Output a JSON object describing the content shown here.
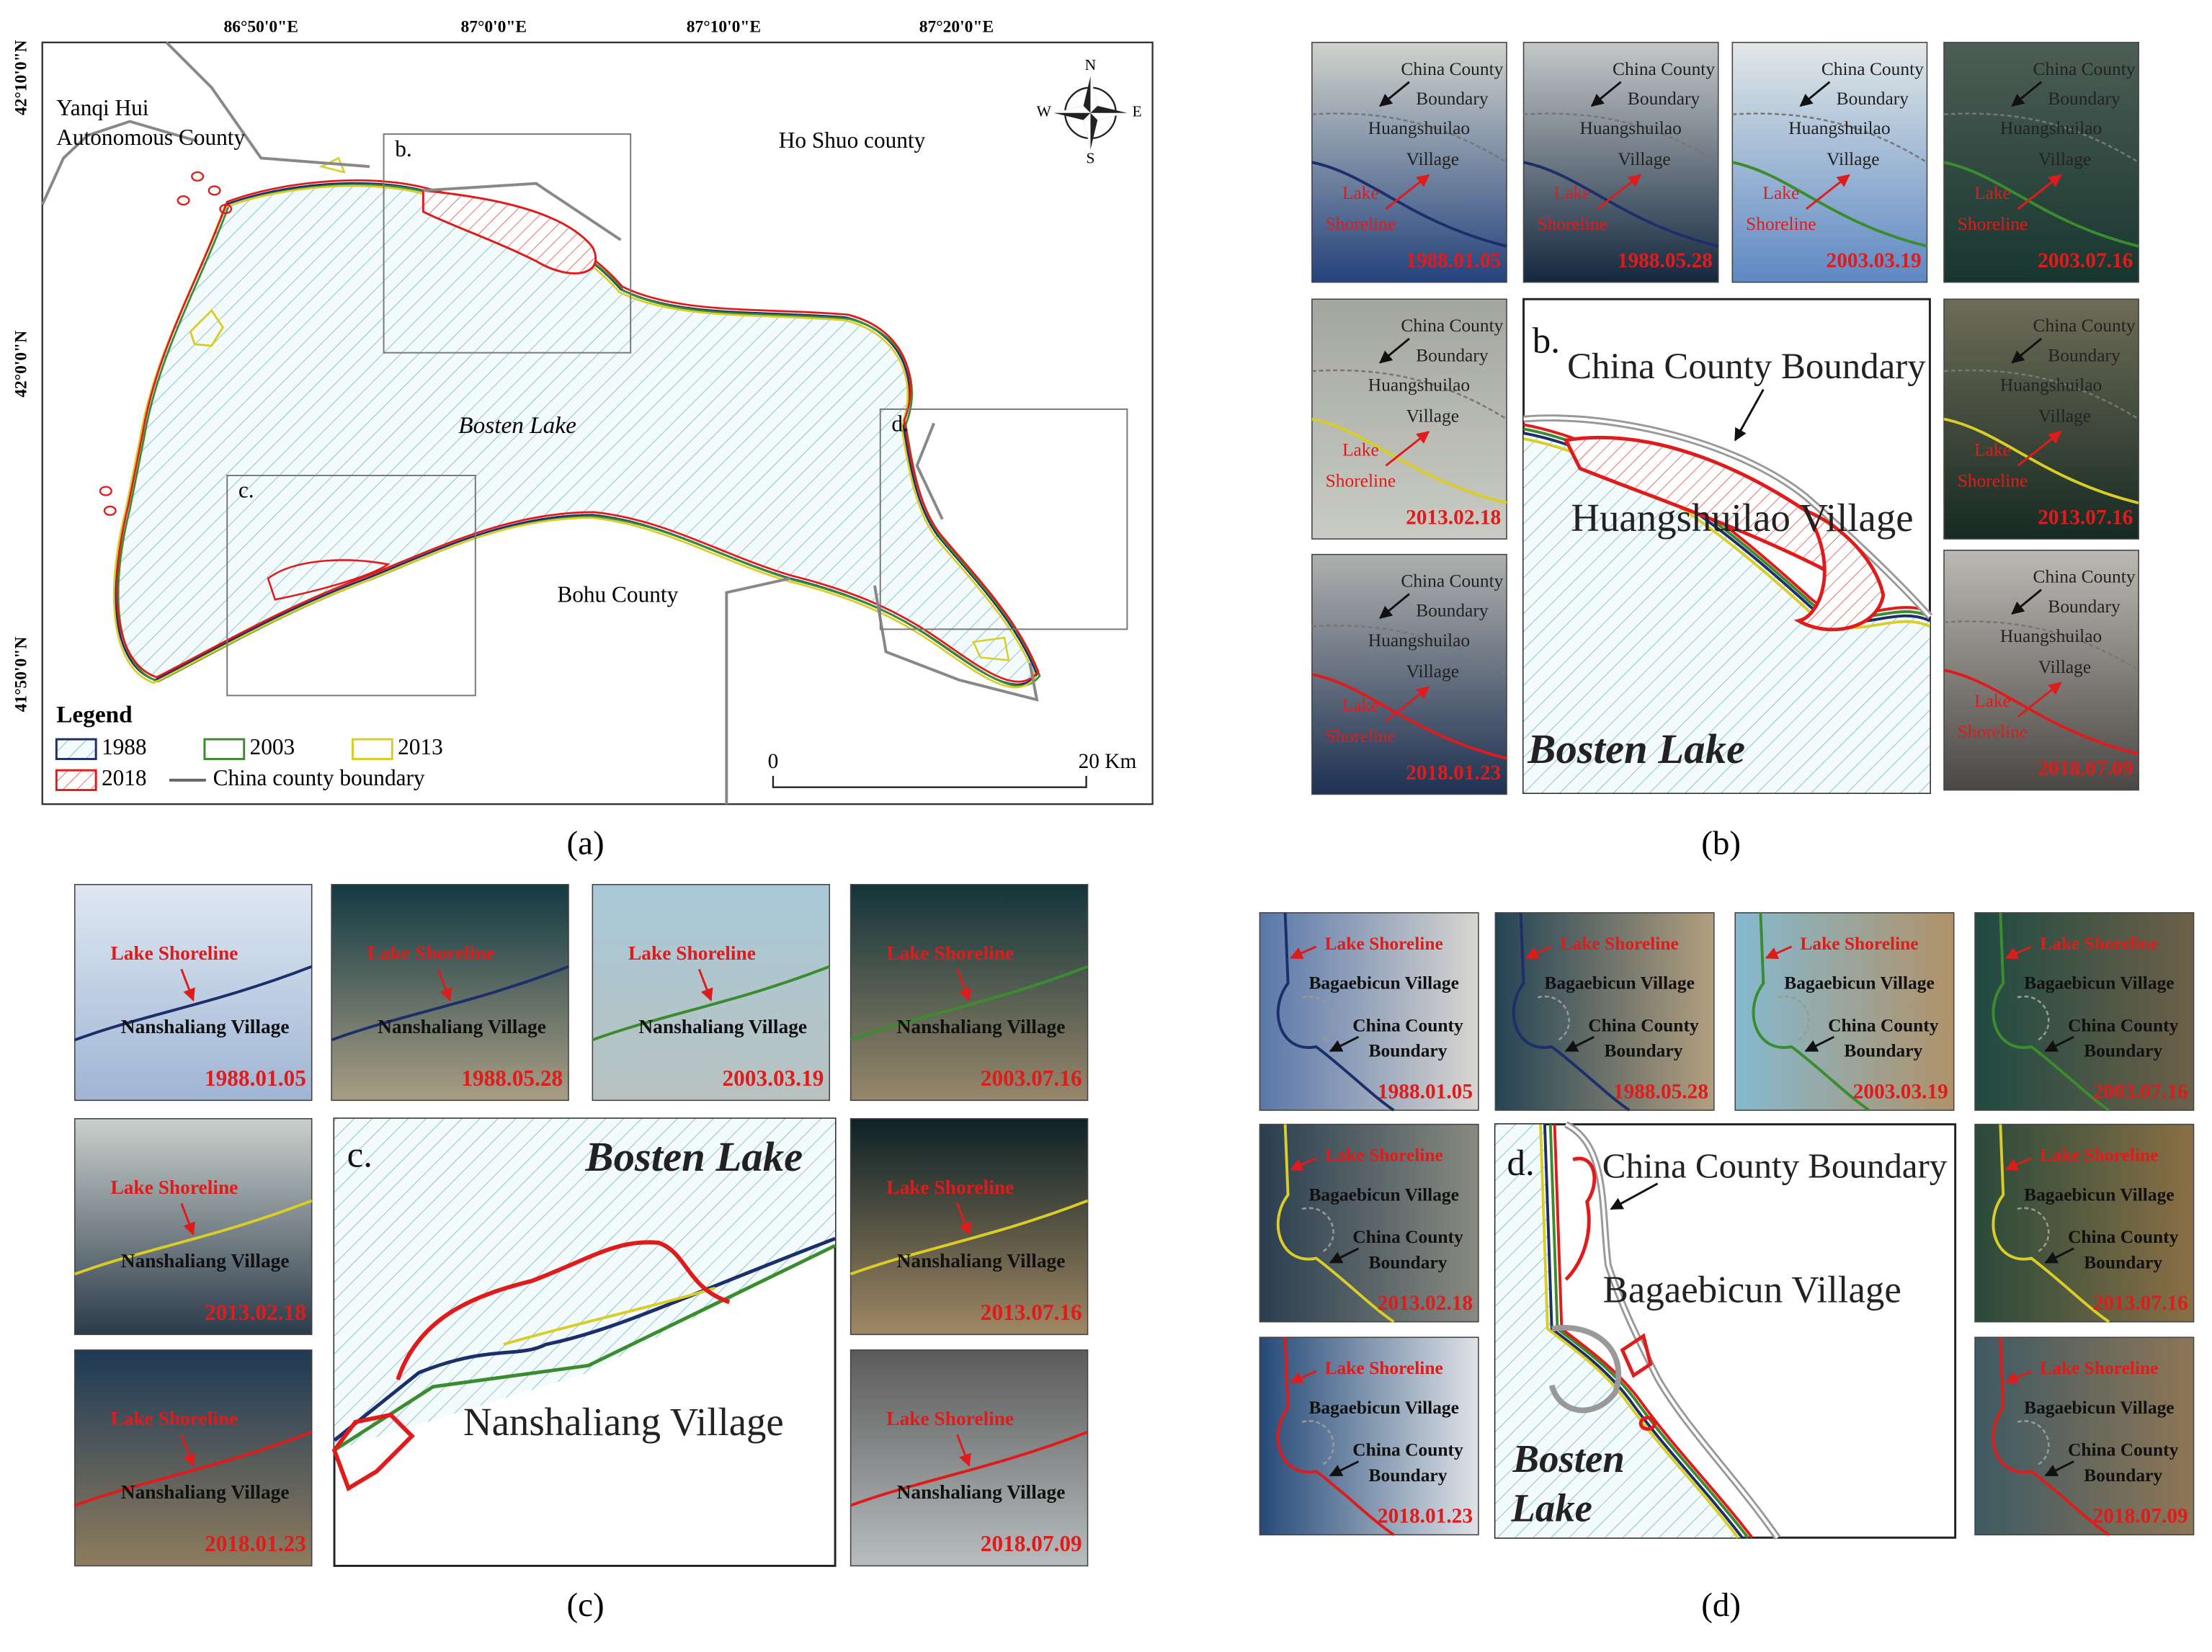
{
  "panel_a": {
    "caption": "(a)",
    "longitude_labels": [
      "86°50'0\"E",
      "87°0'0\"E",
      "87°10'0\"E",
      "87°20'0\"E"
    ],
    "latitude_labels": [
      "42°10'0\"N",
      "42°0'0\"N",
      "41°50'0\"N"
    ],
    "place_labels": {
      "yanqi_line1": "Yanqi Hui",
      "yanqi_line2": "Autonomous County",
      "ho_shuo": "Ho Shuo county",
      "bosten": "Bosten Lake",
      "bohu": "Bohu County"
    },
    "box_labels": [
      "b.",
      "c.",
      "d."
    ],
    "compass": {
      "n": "N",
      "s": "S",
      "w": "W",
      "e": "E"
    },
    "legend": {
      "title": "Legend",
      "entries": [
        "1988",
        "2003",
        "2013",
        "2018",
        "China county boundary"
      ]
    },
    "scale_bar": {
      "start": "0",
      "end": "20 Km"
    }
  },
  "panel_b": {
    "caption": "(b)",
    "thumbnail_labels": {
      "boundary_line1": "China County",
      "boundary_line2": "Boundary",
      "village_line1": "Huangshuilao",
      "village_line2": "Village",
      "shore_line1": "Lake",
      "shore_line2": "Shoreline"
    },
    "dates": [
      "1988.01.05",
      "1988.05.28",
      "2003.03.19",
      "2003.07.16",
      "2013.02.18",
      "2013.07.16",
      "2018.01.23",
      "2018.07.09"
    ],
    "inset": {
      "letter": "b.",
      "boundary": "China County Boundary",
      "village": "Huangshuilao Village",
      "lake": "Bosten Lake"
    }
  },
  "panel_c": {
    "caption": "(c)",
    "thumbnail_labels": {
      "shore": "Lake Shoreline",
      "village": "Nanshaliang Village"
    },
    "dates": [
      "1988.01.05",
      "1988.05.28",
      "2003.03.19",
      "2003.07.16",
      "2013.02.18",
      "2013.07.16",
      "2018.01.23",
      "2018.07.09"
    ],
    "inset": {
      "letter": "c.",
      "lake": "Bosten Lake",
      "village": "Nanshaliang Village"
    }
  },
  "panel_d": {
    "caption": "(d)",
    "thumbnail_labels": {
      "shore": "Lake Shoreline",
      "village": "Bagaebicun Village",
      "boundary_line1": "China County",
      "boundary_line2": "Boundary"
    },
    "dates": [
      "1988.01.05",
      "1988.05.28",
      "2003.03.19",
      "2003.07.16",
      "2013.02.18",
      "2013.07.16",
      "2018.01.23",
      "2018.07.09"
    ],
    "inset": {
      "letter": "d.",
      "boundary": "China County Boundary",
      "village": "Bagaebicun Village",
      "lake_line1": "Bosten",
      "lake_line2": "Lake"
    }
  }
}
